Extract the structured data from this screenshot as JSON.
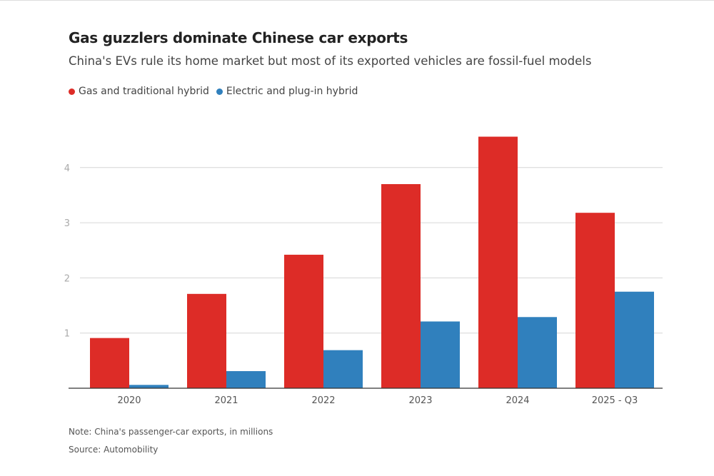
{
  "header": {
    "title": "Gas guzzlers dominate Chinese car exports",
    "subtitle": "China's EVs rule its home market but most of its exported vehicles are fossil-fuel models"
  },
  "footer": {
    "note": "Note: China's passenger-car exports, in millions",
    "source": "Source: Automobility"
  },
  "chart_data": {
    "type": "bar",
    "title": "Gas guzzlers dominate Chinese car exports",
    "subtitle": "China's EVs rule its home market but most of its exported vehicles are fossil-fuel models",
    "categories": [
      "2020",
      "2021",
      "2022",
      "2023",
      "2024",
      "2025 - Q3"
    ],
    "series": [
      {
        "name": "Gas and traditional hybrid",
        "color": "#dd2c27",
        "values": [
          0.91,
          1.71,
          2.42,
          3.7,
          4.56,
          3.18
        ]
      },
      {
        "name": "Electric and plug-in hybrid",
        "color": "#3080bd",
        "values": [
          0.06,
          0.31,
          0.69,
          1.21,
          1.29,
          1.75
        ]
      }
    ],
    "yticks": [
      1,
      2,
      3,
      4
    ],
    "ylim": [
      0,
      4.7
    ],
    "grid": true,
    "legend": "top-left",
    "xlabel": "",
    "ylabel": ""
  }
}
